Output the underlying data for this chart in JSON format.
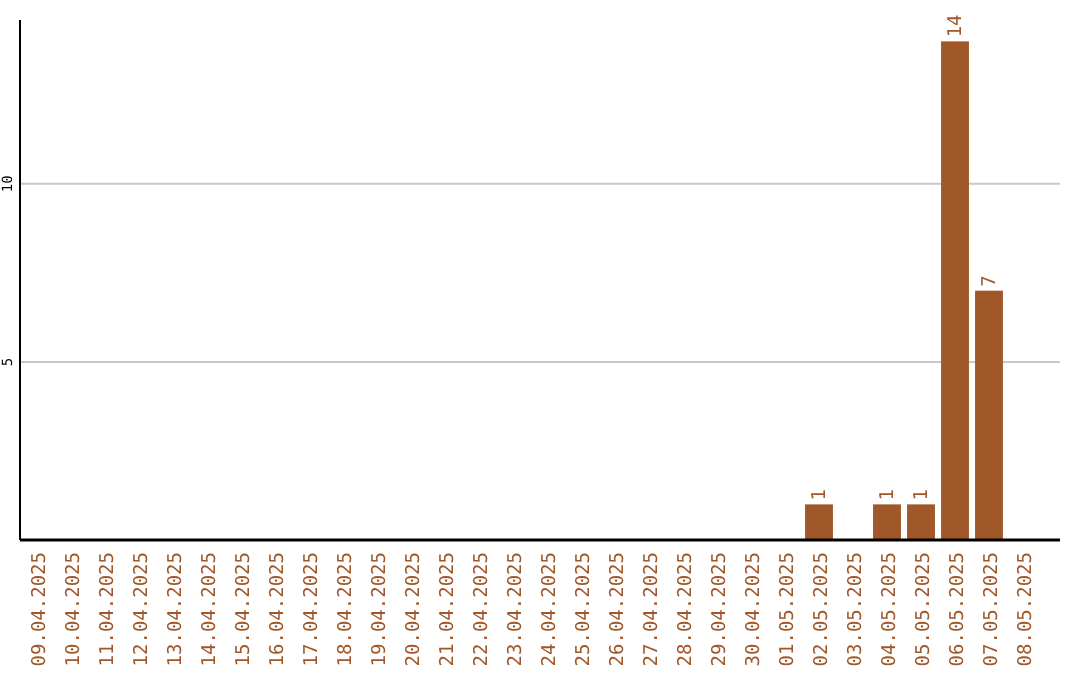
{
  "chart_data": {
    "type": "bar",
    "categories": [
      "09.04.2025",
      "10.04.2025",
      "11.04.2025",
      "12.04.2025",
      "13.04.2025",
      "14.04.2025",
      "15.04.2025",
      "16.04.2025",
      "17.04.2025",
      "18.04.2025",
      "19.04.2025",
      "20.04.2025",
      "21.04.2025",
      "22.04.2025",
      "23.04.2025",
      "24.04.2025",
      "25.04.2025",
      "26.04.2025",
      "27.04.2025",
      "28.04.2025",
      "29.04.2025",
      "30.04.2025",
      "01.05.2025",
      "02.05.2025",
      "03.05.2025",
      "04.05.2025",
      "05.05.2025",
      "06.05.2025",
      "07.05.2025",
      "08.05.2025"
    ],
    "values": [
      0,
      0,
      0,
      0,
      0,
      0,
      0,
      0,
      0,
      0,
      0,
      0,
      0,
      0,
      0,
      0,
      0,
      0,
      0,
      0,
      0,
      0,
      0,
      1,
      0,
      1,
      1,
      14,
      7,
      0
    ],
    "value_labels": [
      null,
      null,
      null,
      null,
      null,
      null,
      null,
      null,
      null,
      null,
      null,
      null,
      null,
      null,
      null,
      null,
      null,
      null,
      null,
      null,
      null,
      null,
      null,
      "1",
      null,
      "1",
      "1",
      "14",
      "7",
      null
    ],
    "color": "#a0572a",
    "ylim": [
      0,
      14.6
    ],
    "yticks": [
      5,
      10
    ],
    "grid": "y"
  }
}
